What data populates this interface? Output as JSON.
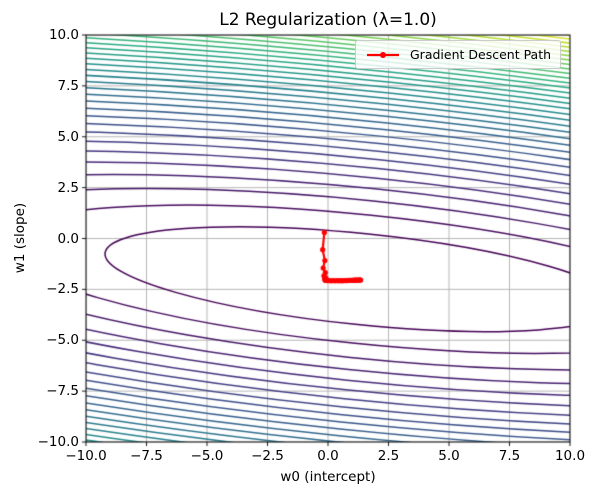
{
  "title": "L2 Regularization (λ=1.0)",
  "chart_data": {
    "type": "contour",
    "title": "L2 Regularization (λ=1.0)",
    "xlabel": "w0 (intercept)",
    "ylabel": "w1 (slope)",
    "xlim": [
      -10,
      10
    ],
    "ylim": [
      -10,
      10
    ],
    "xticks": [
      -10,
      -7.5,
      -5,
      -2.5,
      0,
      2.5,
      5,
      7.5,
      10
    ],
    "xtick_labels": [
      "−10.0",
      "−7.5",
      "−5.0",
      "−2.5",
      "0.0",
      "2.5",
      "5.0",
      "7.5",
      "10.0"
    ],
    "yticks": [
      10,
      7.5,
      5,
      2.5,
      0,
      -2.5,
      -5,
      -7.5,
      -10
    ],
    "ytick_labels": [
      "10.0",
      "7.5",
      "5.0",
      "2.5",
      "0.0",
      "−2.5",
      "−5.0",
      "−7.5",
      "−10.0"
    ],
    "grid": true,
    "grid_color": "#b0b0b0",
    "spine_color": "#000000",
    "colormap": "viridis",
    "viridis_stops": [
      [
        0.0,
        "#440154"
      ],
      [
        0.125,
        "#472d7b"
      ],
      [
        0.25,
        "#3b528b"
      ],
      [
        0.375,
        "#2c728e"
      ],
      [
        0.5,
        "#21918c"
      ],
      [
        0.625,
        "#28ae80"
      ],
      [
        0.75,
        "#5ec962"
      ],
      [
        0.875,
        "#addc30"
      ],
      [
        1.0,
        "#fde725"
      ]
    ],
    "contour_model": {
      "description": "Elliptical contours of ridge-regularized quadratic loss, minimum at center",
      "center": [
        1.4,
        -2.0
      ],
      "rotation_deg": -7,
      "curvature_major": 1.05,
      "curvature_minor": 24,
      "level_step": 120,
      "n_levels": 35,
      "line_width": 1.5
    },
    "legend": {
      "label": "Gradient Descent Path",
      "location": "upper right"
    },
    "gd_path": {
      "name": "Gradient Descent Path",
      "color": "#ff0000",
      "line_width": 2.2,
      "marker_radius": 2.6,
      "start": [
        -0.15,
        0.3
      ],
      "end": [
        1.35,
        -2.04
      ],
      "points": [
        [
          -0.15,
          0.3
        ],
        [
          -0.22,
          -0.55
        ],
        [
          -0.13,
          -1.08
        ],
        [
          -0.2,
          -1.45
        ],
        [
          -0.11,
          -1.68
        ],
        [
          -0.17,
          -1.83
        ],
        [
          -0.09,
          -1.93
        ],
        [
          -0.14,
          -2.0
        ],
        [
          -0.07,
          -2.04
        ],
        [
          -0.11,
          -2.06
        ],
        [
          -0.03,
          -2.07
        ],
        [
          0.05,
          -2.07
        ],
        [
          0.13,
          -2.08
        ],
        [
          0.21,
          -2.07
        ],
        [
          0.29,
          -2.08
        ],
        [
          0.37,
          -2.07
        ],
        [
          0.45,
          -2.08
        ],
        [
          0.52,
          -2.07
        ],
        [
          0.59,
          -2.08
        ],
        [
          0.66,
          -2.07
        ],
        [
          0.73,
          -2.07
        ],
        [
          0.79,
          -2.07
        ],
        [
          0.85,
          -2.06
        ],
        [
          0.91,
          -2.06
        ],
        [
          0.97,
          -2.06
        ],
        [
          1.02,
          -2.06
        ],
        [
          1.07,
          -2.05
        ],
        [
          1.12,
          -2.05
        ],
        [
          1.16,
          -2.05
        ],
        [
          1.2,
          -2.05
        ],
        [
          1.24,
          -2.04
        ],
        [
          1.27,
          -2.04
        ],
        [
          1.3,
          -2.04
        ],
        [
          1.33,
          -2.04
        ],
        [
          1.35,
          -2.04
        ]
      ]
    }
  }
}
